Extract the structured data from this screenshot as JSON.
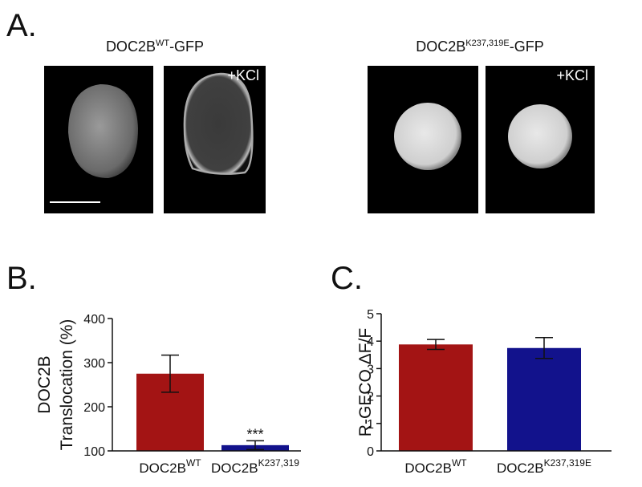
{
  "figure_a": {
    "label": "A.",
    "groups": [
      {
        "caption_base": "DOC2B",
        "caption_sup": "WT",
        "caption_suffix": "-GFP",
        "treatment_label": "+KCl"
      },
      {
        "caption_base": "DOC2B",
        "caption_sup": "K237,319E",
        "caption_suffix": "-GFP",
        "treatment_label": "+KCl"
      }
    ]
  },
  "chart_data": [
    {
      "type": "bar",
      "panel_label": "B.",
      "y_label": [
        "DOC2B",
        "Translocation (%)"
      ],
      "categories": [
        "DOC2B",
        "DOC2B"
      ],
      "category_superscripts": [
        "WT",
        "K237,319"
      ],
      "values": [
        275,
        113
      ],
      "errors": [
        42,
        10
      ],
      "colors": [
        "#a31414",
        "#12128c"
      ],
      "value_annotations": [
        null,
        "***"
      ],
      "ylim": [
        100,
        400
      ],
      "yticks": [
        100,
        200,
        300,
        400
      ]
    },
    {
      "type": "bar",
      "panel_label": "C.",
      "y_label": [
        "R-GECO ΔF/F"
      ],
      "categories": [
        "DOC2B",
        "DOC2B"
      ],
      "category_superscripts": [
        "WT",
        "K237,319E"
      ],
      "values": [
        3.88,
        3.75
      ],
      "errors": [
        0.18,
        0.38
      ],
      "colors": [
        "#a31414",
        "#12128c"
      ],
      "value_annotations": [
        null,
        null
      ],
      "ylim": [
        0,
        5
      ],
      "yticks": [
        0,
        1,
        2,
        3,
        4,
        5
      ]
    }
  ]
}
